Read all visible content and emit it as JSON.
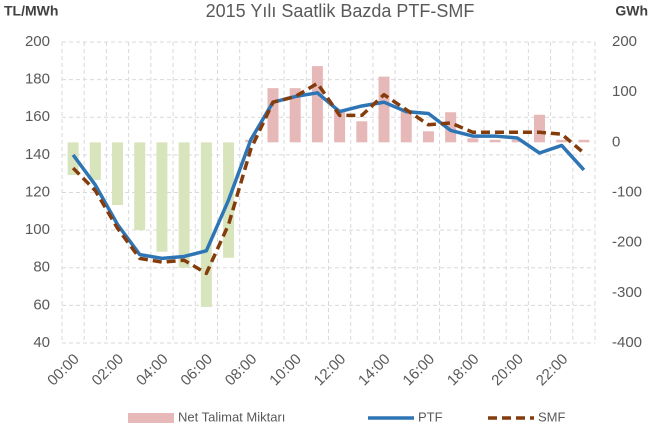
{
  "chart_data": {
    "type": "combo",
    "title": "2015 Yılı Saatlik Bazda PTF-SMF",
    "y_label": "TL/MWh",
    "y2_label": "GWh",
    "categories": [
      "00:00",
      null,
      "02:00",
      null,
      "04:00",
      null,
      "06:00",
      null,
      "08:00",
      null,
      "10:00",
      null,
      "12:00",
      null,
      "14:00",
      null,
      "16:00",
      null,
      "18:00",
      null,
      "20:00",
      null,
      "22:00",
      null
    ],
    "series": [
      {
        "name": "Net Talimat Miktarı",
        "kind": "bar",
        "axis": "y2",
        "color": "#e6b9b8",
        "negative_color": "#d8e4bc",
        "values": [
          -65,
          -75,
          -125,
          -175,
          -218,
          -250,
          -328,
          -230,
          5,
          108,
          108,
          152,
          65,
          42,
          131,
          65,
          22,
          60,
          8,
          5,
          5,
          55,
          5,
          5
        ]
      },
      {
        "name": "PTF",
        "kind": "line",
        "color": "#2e75b6",
        "dashed": false,
        "values": [
          140,
          124,
          103,
          87,
          85,
          86,
          89,
          116,
          148,
          168,
          171,
          173,
          163,
          166,
          168,
          163,
          162,
          153,
          150,
          150,
          149,
          141,
          145,
          132
        ]
      },
      {
        "name": "SMF",
        "kind": "line",
        "color": "#843c0c",
        "dashed": true,
        "values": [
          133,
          121,
          101,
          85,
          83,
          84,
          77,
          103,
          143,
          168,
          171,
          178,
          161,
          161,
          172,
          164,
          156,
          157,
          152,
          152,
          152,
          152,
          151,
          141
        ]
      }
    ],
    "ylim": [
      40,
      200
    ],
    "yticks": [
      40,
      60,
      80,
      100,
      120,
      140,
      160,
      180,
      200
    ],
    "y2lim": [
      -400,
      200
    ],
    "y2ticks": [
      -400,
      -300,
      -200,
      -100,
      0,
      100,
      200
    ],
    "grid": true,
    "legend": "bottom"
  }
}
